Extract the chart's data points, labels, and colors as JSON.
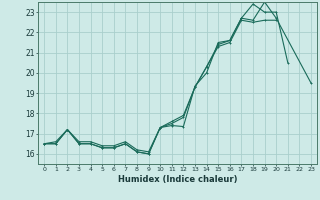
{
  "xlabel": "Humidex (Indice chaleur)",
  "bg_color": "#ceeae7",
  "grid_color": "#aacfcc",
  "line_color": "#1a6b5a",
  "xlim": [
    -0.5,
    23.5
  ],
  "ylim": [
    15.5,
    23.5
  ],
  "yticks": [
    16,
    17,
    18,
    19,
    20,
    21,
    22,
    23
  ],
  "xtick_labels": [
    "0",
    "1",
    "2",
    "3",
    "4",
    "5",
    "6",
    "7",
    "8",
    "9",
    "10",
    "11",
    "12",
    "13",
    "14",
    "15",
    "16",
    "17",
    "18",
    "19",
    "20",
    "21",
    "22",
    "23"
  ],
  "line1_x": [
    0,
    1,
    2,
    3,
    4,
    5,
    6,
    7,
    8,
    9,
    10,
    11,
    12,
    13,
    14,
    15,
    16,
    17,
    18,
    19,
    20,
    23
  ],
  "line1_y": [
    16.5,
    16.6,
    17.2,
    16.6,
    16.6,
    16.4,
    16.4,
    16.6,
    16.2,
    16.1,
    17.3,
    17.6,
    17.9,
    19.3,
    20.3,
    21.4,
    21.6,
    22.7,
    22.6,
    23.5,
    22.7,
    19.5
  ],
  "line2_x": [
    0,
    1,
    2,
    3,
    4,
    5,
    6,
    7,
    8,
    9,
    10,
    11,
    12,
    13,
    14,
    15,
    16,
    17,
    18,
    19,
    20,
    21
  ],
  "line2_y": [
    16.5,
    16.5,
    17.2,
    16.5,
    16.5,
    16.3,
    16.3,
    16.5,
    16.1,
    16.0,
    17.3,
    17.4,
    17.35,
    19.35,
    20.0,
    21.5,
    21.6,
    22.7,
    23.4,
    23.0,
    23.0,
    20.5
  ],
  "line3_x": [
    0,
    1,
    2,
    3,
    4,
    5,
    6,
    7,
    8,
    9,
    10,
    11,
    12,
    13,
    14,
    15,
    16,
    17,
    18,
    19,
    20
  ],
  "line3_y": [
    16.5,
    16.5,
    17.2,
    16.5,
    16.5,
    16.3,
    16.3,
    16.5,
    16.1,
    16.0,
    17.3,
    17.5,
    17.8,
    19.3,
    20.3,
    21.3,
    21.5,
    22.6,
    22.5,
    22.6,
    22.6
  ]
}
